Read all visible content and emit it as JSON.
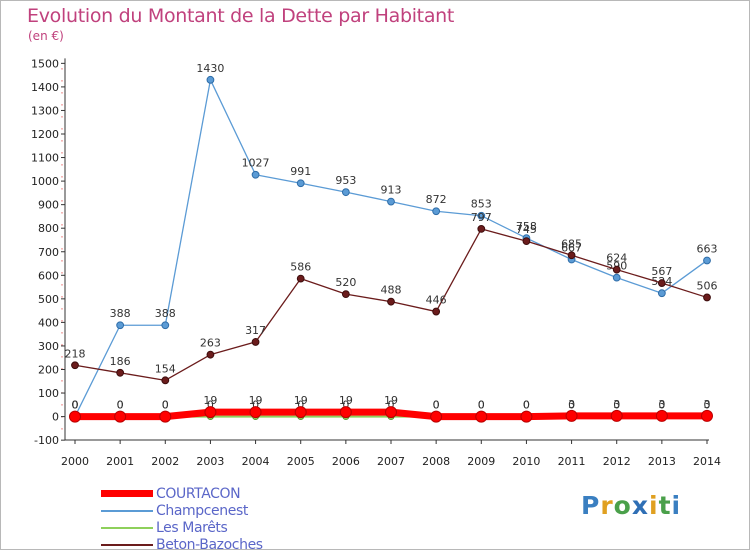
{
  "title": "Evolution du Montant de la Dette par Habitant",
  "unit": "(en €)",
  "brand": "Proxiti",
  "chart_data": {
    "type": "line",
    "x": [
      "2000",
      "2001",
      "2002",
      "2003",
      "2004",
      "2005",
      "2006",
      "2007",
      "2008",
      "2009",
      "2010",
      "2011",
      "2012",
      "2013",
      "2014"
    ],
    "ylim": [
      -100,
      1500
    ],
    "yticks": [
      -100,
      0,
      100,
      200,
      300,
      400,
      500,
      600,
      700,
      800,
      900,
      1000,
      1100,
      1200,
      1300,
      1400,
      1500
    ],
    "grid": false,
    "legend_position": "bottom-left",
    "series": [
      {
        "name": "COURTACON",
        "color": "#ff0000",
        "values": [
          0,
          0,
          0,
          19,
          19,
          19,
          19,
          19,
          0,
          0,
          0,
          3,
          3,
          3,
          3
        ]
      },
      {
        "name": "Champcenest",
        "color": "#5b9bd5",
        "values": [
          0,
          388,
          388,
          1430,
          1027,
          991,
          953,
          913,
          872,
          853,
          758,
          667,
          590,
          524,
          663
        ]
      },
      {
        "name": "Les Marêts",
        "color": "#8ed05b",
        "values": [
          0,
          0,
          0,
          0,
          0,
          0,
          0,
          0,
          0,
          0,
          0,
          0,
          0,
          0,
          0
        ]
      },
      {
        "name": "Beton-Bazoches",
        "color": "#6b1c1c",
        "values": [
          218,
          186,
          154,
          263,
          317,
          586,
          520,
          488,
          446,
          797,
          745,
          685,
          624,
          567,
          506
        ]
      }
    ]
  }
}
